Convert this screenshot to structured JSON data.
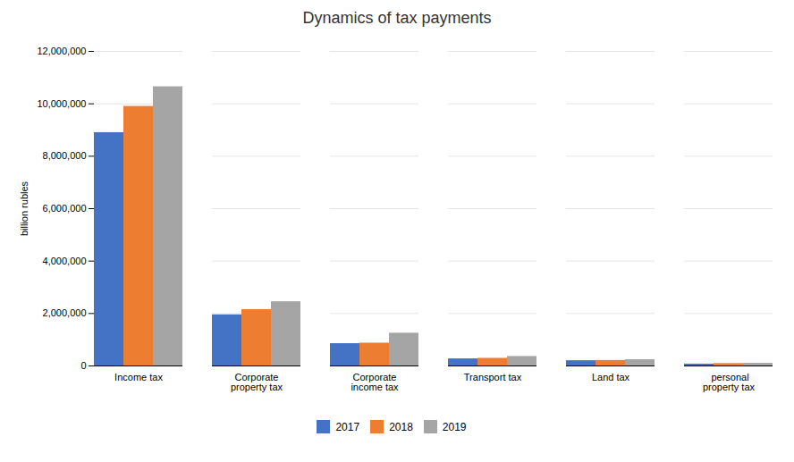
{
  "chart_data": {
    "type": "bar",
    "title": "Dynamics of tax payments",
    "ylabel": "billion rubles",
    "categories": [
      "Income tax",
      "Corporate\nproperty tax",
      "Corporate\nincome tax",
      "Transport tax",
      "Land tax",
      " personal\nproperty tax"
    ],
    "series": [
      {
        "name": "2017",
        "color": "#4472C4",
        "values": [
          8900000,
          1950000,
          850000,
          270000,
          200000,
          70000
        ]
      },
      {
        "name": "2018",
        "color": "#ED7D31",
        "values": [
          9900000,
          2150000,
          870000,
          290000,
          210000,
          90000
        ]
      },
      {
        "name": "2019",
        "color": "#A5A5A5",
        "values": [
          10650000,
          2450000,
          1250000,
          360000,
          240000,
          100000
        ]
      }
    ],
    "ylim": [
      0,
      12000000
    ],
    "yticks": [
      0,
      {
        "value": 2000000,
        "label": "2,000,000"
      },
      {
        "value": 4000000,
        "label": "4,000,000"
      },
      {
        "value": 6000000,
        "label": "6,000,000"
      },
      {
        "value": 8000000,
        "label": "8,000,000"
      },
      {
        "value": 10000000,
        "label": "10,000,000"
      },
      {
        "value": 12000000,
        "label": "12,000,000"
      }
    ],
    "grid": true,
    "legend": "bottom"
  }
}
